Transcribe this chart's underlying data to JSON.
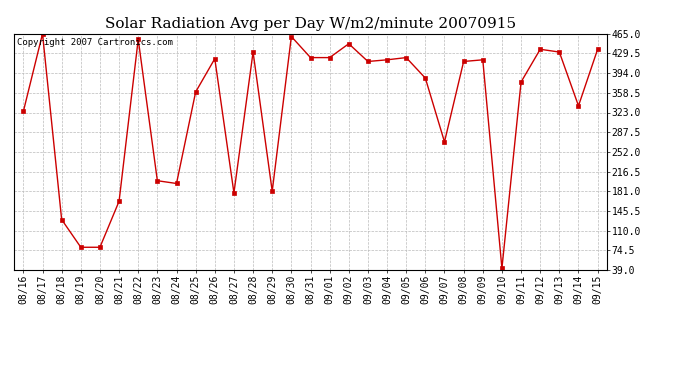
{
  "title": "Solar Radiation Avg per Day W/m2/minute 20070915",
  "copyright_text": "Copyright 2007 Cartronics.com",
  "labels": [
    "08/16",
    "08/17",
    "08/18",
    "08/19",
    "08/20",
    "08/21",
    "08/22",
    "08/23",
    "08/24",
    "08/25",
    "08/26",
    "08/27",
    "08/28",
    "08/29",
    "08/30",
    "08/31",
    "09/01",
    "09/02",
    "09/03",
    "09/04",
    "09/05",
    "09/06",
    "09/07",
    "09/08",
    "09/09",
    "09/10",
    "09/11",
    "09/12",
    "09/13",
    "09/14",
    "09/15"
  ],
  "values": [
    325,
    465,
    130,
    80,
    80,
    163,
    455,
    200,
    195,
    360,
    420,
    178,
    432,
    181,
    460,
    422,
    422,
    447,
    415,
    418,
    422,
    385,
    270,
    415,
    418,
    42,
    378,
    437,
    432,
    335,
    437
  ],
  "line_color": "#cc0000",
  "marker": "s",
  "marker_size": 2.5,
  "grid_color": "#bbbbbb",
  "background_color": "#ffffff",
  "ylim_min": 39.0,
  "ylim_max": 465.0,
  "yticks": [
    39.0,
    74.5,
    110.0,
    145.5,
    181.0,
    216.5,
    252.0,
    287.5,
    323.0,
    358.5,
    394.0,
    429.5,
    465.0
  ],
  "title_fontsize": 11,
  "tick_fontsize": 7,
  "copyright_fontsize": 6.5,
  "fig_width": 6.9,
  "fig_height": 3.75,
  "dpi": 100
}
